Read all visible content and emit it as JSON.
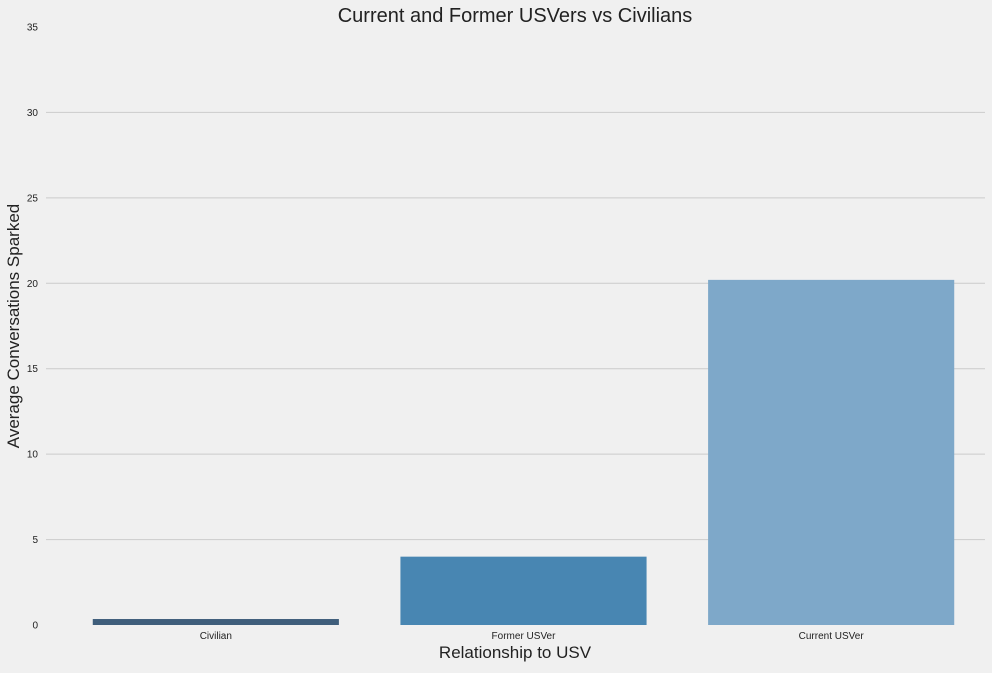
{
  "chart_data": {
    "type": "bar",
    "title": "Current and Former USVers vs Civilians",
    "xlabel": "Relationship to USV",
    "ylabel": "Average Conversations Sparked",
    "categories": [
      "Civilian",
      "Former USVer",
      "Current USVer"
    ],
    "values": [
      0.35,
      4.0,
      20.2
    ],
    "bar_colors": [
      "#3f5e7b",
      "#4886b2",
      "#7ea8c9"
    ],
    "ylim": [
      0,
      35
    ],
    "yticks": [
      0,
      5,
      10,
      15,
      20,
      25,
      30,
      35
    ],
    "grid": true,
    "legend": "none"
  },
  "colors": {
    "background": "#f0f0f0",
    "grid": "#cbcbcb",
    "text": "#222222"
  }
}
